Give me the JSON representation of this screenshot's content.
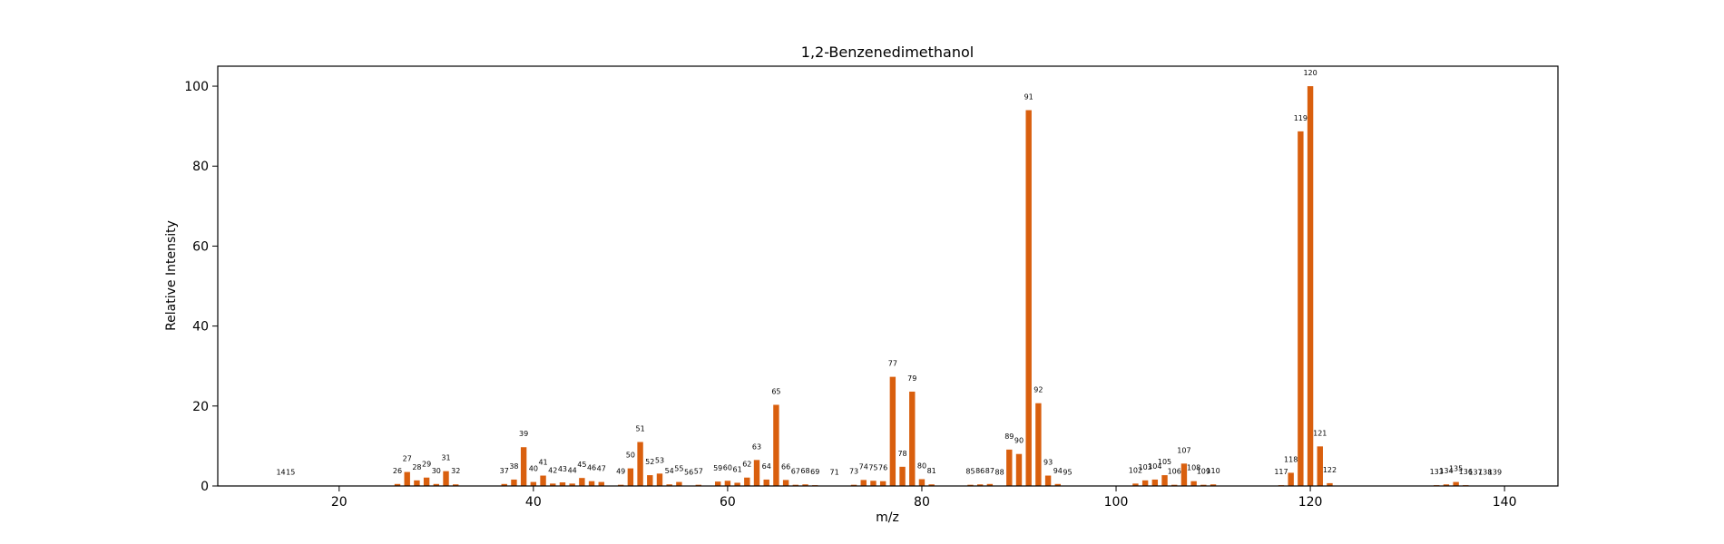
{
  "chart_data": {
    "type": "bar",
    "title": "1,2-Benzenedimethanol",
    "xlabel": "m/z",
    "ylabel": "Relative Intensity",
    "xlim": [
      7.5,
      145.5
    ],
    "ylim": [
      0,
      105
    ],
    "xticks": [
      20,
      40,
      60,
      80,
      100,
      120,
      140
    ],
    "yticks": [
      0,
      20,
      40,
      60,
      80,
      100
    ],
    "bar_color": "#d95f0e",
    "grid": false,
    "legend": "none",
    "points": [
      {
        "x": 14,
        "y": 0.1,
        "label": "14"
      },
      {
        "x": 15,
        "y": 0.1,
        "label": "15"
      },
      {
        "x": 26,
        "y": 0.5,
        "label": "26"
      },
      {
        "x": 27,
        "y": 3.5,
        "label": "27"
      },
      {
        "x": 28,
        "y": 1.4,
        "label": "28"
      },
      {
        "x": 29,
        "y": 2.1,
        "label": "29"
      },
      {
        "x": 30,
        "y": 0.5,
        "label": "30"
      },
      {
        "x": 31,
        "y": 3.7,
        "label": "31"
      },
      {
        "x": 32,
        "y": 0.4,
        "label": "32"
      },
      {
        "x": 37,
        "y": 0.5,
        "label": "37"
      },
      {
        "x": 38,
        "y": 1.6,
        "label": "38"
      },
      {
        "x": 39,
        "y": 9.7,
        "label": "39"
      },
      {
        "x": 40,
        "y": 1.0,
        "label": "40"
      },
      {
        "x": 41,
        "y": 2.6,
        "label": "41"
      },
      {
        "x": 42,
        "y": 0.6,
        "label": "42"
      },
      {
        "x": 43,
        "y": 0.9,
        "label": "43"
      },
      {
        "x": 44,
        "y": 0.6,
        "label": "44"
      },
      {
        "x": 45,
        "y": 2.0,
        "label": "45"
      },
      {
        "x": 46,
        "y": 1.2,
        "label": "46"
      },
      {
        "x": 47,
        "y": 1.0,
        "label": "47"
      },
      {
        "x": 49,
        "y": 0.3,
        "label": "49"
      },
      {
        "x": 50,
        "y": 4.4,
        "label": "50"
      },
      {
        "x": 51,
        "y": 11.0,
        "label": "51"
      },
      {
        "x": 52,
        "y": 2.7,
        "label": "52"
      },
      {
        "x": 53,
        "y": 3.1,
        "label": "53"
      },
      {
        "x": 54,
        "y": 0.4,
        "label": "54"
      },
      {
        "x": 55,
        "y": 1.0,
        "label": "55"
      },
      {
        "x": 56,
        "y": 0.1,
        "label": "56"
      },
      {
        "x": 57,
        "y": 0.3,
        "label": "57"
      },
      {
        "x": 59,
        "y": 1.1,
        "label": "59"
      },
      {
        "x": 60,
        "y": 1.3,
        "label": "60"
      },
      {
        "x": 61,
        "y": 0.8,
        "label": "61"
      },
      {
        "x": 62,
        "y": 2.1,
        "label": "62"
      },
      {
        "x": 63,
        "y": 6.5,
        "label": "63"
      },
      {
        "x": 64,
        "y": 1.6,
        "label": "64"
      },
      {
        "x": 65,
        "y": 20.3,
        "label": "65"
      },
      {
        "x": 66,
        "y": 1.5,
        "label": "66"
      },
      {
        "x": 67,
        "y": 0.3,
        "label": "67"
      },
      {
        "x": 68,
        "y": 0.4,
        "label": "68"
      },
      {
        "x": 69,
        "y": 0.2,
        "label": "69"
      },
      {
        "x": 71,
        "y": 0.1,
        "label": "71"
      },
      {
        "x": 73,
        "y": 0.3,
        "label": "73"
      },
      {
        "x": 74,
        "y": 1.5,
        "label": "74"
      },
      {
        "x": 75,
        "y": 1.3,
        "label": "75"
      },
      {
        "x": 76,
        "y": 1.2,
        "label": "76"
      },
      {
        "x": 77,
        "y": 27.3,
        "label": "77"
      },
      {
        "x": 78,
        "y": 4.8,
        "label": "78"
      },
      {
        "x": 79,
        "y": 23.6,
        "label": "79"
      },
      {
        "x": 80,
        "y": 1.7,
        "label": "80"
      },
      {
        "x": 81,
        "y": 0.4,
        "label": "81"
      },
      {
        "x": 85,
        "y": 0.3,
        "label": "85"
      },
      {
        "x": 86,
        "y": 0.4,
        "label": "86"
      },
      {
        "x": 87,
        "y": 0.5,
        "label": "87"
      },
      {
        "x": 88,
        "y": 0.1,
        "label": "88"
      },
      {
        "x": 89,
        "y": 9.1,
        "label": "89"
      },
      {
        "x": 90,
        "y": 8.0,
        "label": "90"
      },
      {
        "x": 91,
        "y": 94.0,
        "label": "91"
      },
      {
        "x": 92,
        "y": 20.7,
        "label": "92"
      },
      {
        "x": 93,
        "y": 2.6,
        "label": "93"
      },
      {
        "x": 94,
        "y": 0.5,
        "label": "94"
      },
      {
        "x": 95,
        "y": 0.1,
        "label": "95"
      },
      {
        "x": 102,
        "y": 0.6,
        "label": "102"
      },
      {
        "x": 103,
        "y": 1.4,
        "label": "103"
      },
      {
        "x": 104,
        "y": 1.6,
        "label": "104"
      },
      {
        "x": 105,
        "y": 2.7,
        "label": "105"
      },
      {
        "x": 106,
        "y": 0.3,
        "label": "106"
      },
      {
        "x": 107,
        "y": 5.6,
        "label": "107"
      },
      {
        "x": 108,
        "y": 1.2,
        "label": "108"
      },
      {
        "x": 109,
        "y": 0.3,
        "label": "109"
      },
      {
        "x": 110,
        "y": 0.4,
        "label": "110"
      },
      {
        "x": 117,
        "y": 0.2,
        "label": "117"
      },
      {
        "x": 118,
        "y": 3.3,
        "label": "118"
      },
      {
        "x": 119,
        "y": 88.7,
        "label": "119"
      },
      {
        "x": 120,
        "y": 100.0,
        "label": "120"
      },
      {
        "x": 121,
        "y": 9.9,
        "label": "121"
      },
      {
        "x": 122,
        "y": 0.7,
        "label": "122"
      },
      {
        "x": 133,
        "y": 0.2,
        "label": "133"
      },
      {
        "x": 134,
        "y": 0.4,
        "label": "134"
      },
      {
        "x": 135,
        "y": 1.0,
        "label": "135"
      },
      {
        "x": 136,
        "y": 0.2,
        "label": "136"
      },
      {
        "x": 137,
        "y": 0.1,
        "label": "137"
      },
      {
        "x": 138,
        "y": 0.1,
        "label": "138"
      },
      {
        "x": 139,
        "y": 0.1,
        "label": "139"
      }
    ]
  }
}
